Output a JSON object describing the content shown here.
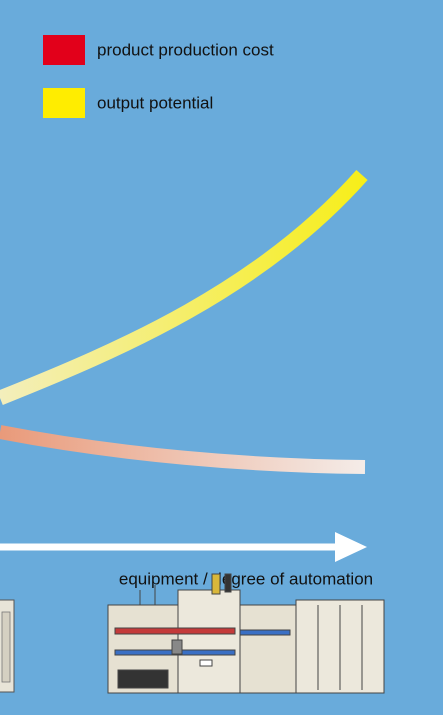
{
  "legend": {
    "items": [
      {
        "label": "product production cost",
        "color": "#e2001a"
      },
      {
        "label": "output potential",
        "color": "#ffed00"
      }
    ]
  },
  "axis_label": "equipment / degree of automation"
}
